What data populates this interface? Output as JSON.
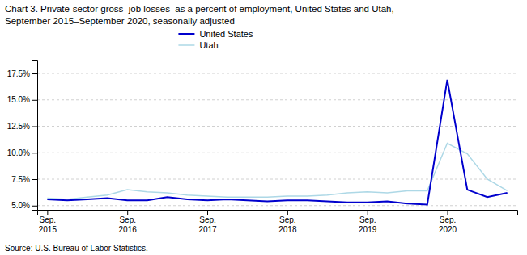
{
  "chart_data": {
    "type": "line",
    "title": "Chart 3. Private-sector gross  job losses  as a percent of employment, United States and Utah,",
    "subtitle": "September 2015–September 2020, seasonally adjusted",
    "source": "Source: U.S. Bureau of Labor Statistics.",
    "categories": [
      "Sep.\n2015",
      null,
      null,
      null,
      "Sep.\n2016",
      null,
      null,
      null,
      "Sep.\n2017",
      null,
      null,
      null,
      "Sep.\n2018",
      null,
      null,
      null,
      "Sep.\n2019",
      null,
      null,
      null,
      "Sep.\n2020",
      null,
      null,
      null
    ],
    "series": [
      {
        "name": "United States",
        "color": "#0000CD",
        "values": [
          5.6,
          5.5,
          5.6,
          5.7,
          5.5,
          5.5,
          5.8,
          5.6,
          5.5,
          5.6,
          5.5,
          5.4,
          5.5,
          5.5,
          5.4,
          5.3,
          5.3,
          5.4,
          5.2,
          5.1,
          16.9,
          6.5,
          5.8,
          6.2
        ]
      },
      {
        "name": "Utah",
        "color": "#ADD8E6",
        "values": [
          5.7,
          5.6,
          5.8,
          6.0,
          6.5,
          6.3,
          6.2,
          6.0,
          5.9,
          5.8,
          5.8,
          5.8,
          5.9,
          5.9,
          6.0,
          6.2,
          6.3,
          6.2,
          6.4,
          6.4,
          10.9,
          9.9,
          7.5,
          6.4
        ]
      }
    ],
    "ylim": [
      4.6,
      18.8
    ],
    "yticks": [
      {
        "value": 5.0,
        "label": "5.0%"
      },
      {
        "value": 7.5,
        "label": "7.5%"
      },
      {
        "value": 10.0,
        "label": "10.0%"
      },
      {
        "value": 12.5,
        "label": "12.5%"
      },
      {
        "value": 15.0,
        "label": "15.0%"
      },
      {
        "value": 17.5,
        "label": "17.5%"
      }
    ],
    "grid": true,
    "legend": "top"
  }
}
